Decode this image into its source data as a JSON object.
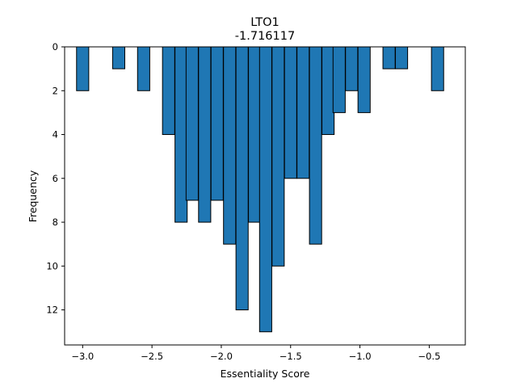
{
  "chart_data": {
    "type": "bar",
    "title": "LTO1",
    "subtitle": "-1.716117",
    "xlabel": "Essentiality Score",
    "ylabel": "Frequency",
    "xlim": [
      -3.13,
      -0.24
    ],
    "ylim": [
      13.6,
      0
    ],
    "y_inverted": true,
    "bin_width": 0.088,
    "x_ticks": [
      -3.0,
      -2.5,
      -2.0,
      -1.5,
      -1.0,
      -0.5
    ],
    "x_tick_labels": [
      "−3.0",
      "−2.5",
      "−2.0",
      "−1.5",
      "−1.0",
      "−0.5"
    ],
    "y_ticks": [
      0,
      2,
      4,
      6,
      8,
      10,
      12
    ],
    "y_tick_labels": [
      "0",
      "2",
      "4",
      "6",
      "8",
      "10",
      "12"
    ],
    "grid": false,
    "bar_color": "#1f77b4",
    "edge_color": "#000000",
    "bins": [
      {
        "x": -3.0,
        "count": 2
      },
      {
        "x": -2.91,
        "count": 0
      },
      {
        "x": -2.82,
        "count": 0
      },
      {
        "x": -2.74,
        "count": 1
      },
      {
        "x": -2.65,
        "count": 0
      },
      {
        "x": -2.56,
        "count": 2
      },
      {
        "x": -2.47,
        "count": 0
      },
      {
        "x": -2.38,
        "count": 4
      },
      {
        "x": -2.29,
        "count": 8
      },
      {
        "x": -2.21,
        "count": 7
      },
      {
        "x": -2.12,
        "count": 8
      },
      {
        "x": -2.03,
        "count": 7
      },
      {
        "x": -1.94,
        "count": 9
      },
      {
        "x": -1.85,
        "count": 12
      },
      {
        "x": -1.76,
        "count": 8
      },
      {
        "x": -1.68,
        "count": 13
      },
      {
        "x": -1.59,
        "count": 10
      },
      {
        "x": -1.5,
        "count": 6
      },
      {
        "x": -1.41,
        "count": 6
      },
      {
        "x": -1.32,
        "count": 9
      },
      {
        "x": -1.23,
        "count": 4
      },
      {
        "x": -1.15,
        "count": 3
      },
      {
        "x": -1.06,
        "count": 2
      },
      {
        "x": -0.97,
        "count": 3
      },
      {
        "x": -0.88,
        "count": 0
      },
      {
        "x": -0.79,
        "count": 1
      },
      {
        "x": -0.7,
        "count": 1
      },
      {
        "x": -0.62,
        "count": 0
      },
      {
        "x": -0.53,
        "count": 0
      },
      {
        "x": -0.44,
        "count": 2
      }
    ]
  }
}
